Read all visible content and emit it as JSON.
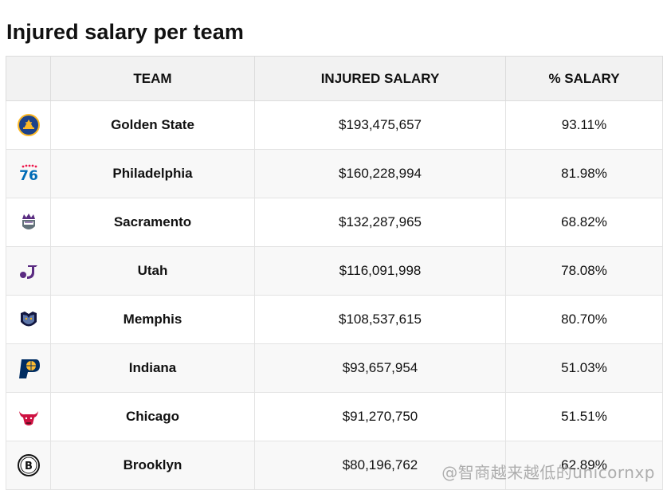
{
  "title": "Injured salary per team",
  "columns": {
    "logo": "",
    "team": "TEAM",
    "injured_salary": "INJURED SALARY",
    "pct_salary": "% SALARY"
  },
  "rows": [
    {
      "team": "Golden State",
      "injured_salary": "$193,475,657",
      "pct_salary": "93.11%",
      "logo_icon": "golden-state-logo"
    },
    {
      "team": "Philadelphia",
      "injured_salary": "$160,228,994",
      "pct_salary": "81.98%",
      "logo_icon": "philadelphia-76ers-logo"
    },
    {
      "team": "Sacramento",
      "injured_salary": "$132,287,965",
      "pct_salary": "68.82%",
      "logo_icon": "sacramento-kings-logo"
    },
    {
      "team": "Utah",
      "injured_salary": "$116,091,998",
      "pct_salary": "78.08%",
      "logo_icon": "utah-jazz-logo"
    },
    {
      "team": "Memphis",
      "injured_salary": "$108,537,615",
      "pct_salary": "80.70%",
      "logo_icon": "memphis-grizzlies-logo"
    },
    {
      "team": "Indiana",
      "injured_salary": "$93,657,954",
      "pct_salary": "51.03%",
      "logo_icon": "indiana-pacers-logo"
    },
    {
      "team": "Chicago",
      "injured_salary": "$91,270,750",
      "pct_salary": "51.51%",
      "logo_icon": "chicago-bulls-logo"
    },
    {
      "team": "Brooklyn",
      "injured_salary": "$80,196,762",
      "pct_salary": "62.89%",
      "logo_icon": "brooklyn-nets-logo"
    }
  ],
  "watermark": "@智商越来越低的unicornxp",
  "colors": {
    "header_bg": "#f2f2f2",
    "stripe_bg": "#f8f8f8",
    "border": "#e3e3e3"
  }
}
